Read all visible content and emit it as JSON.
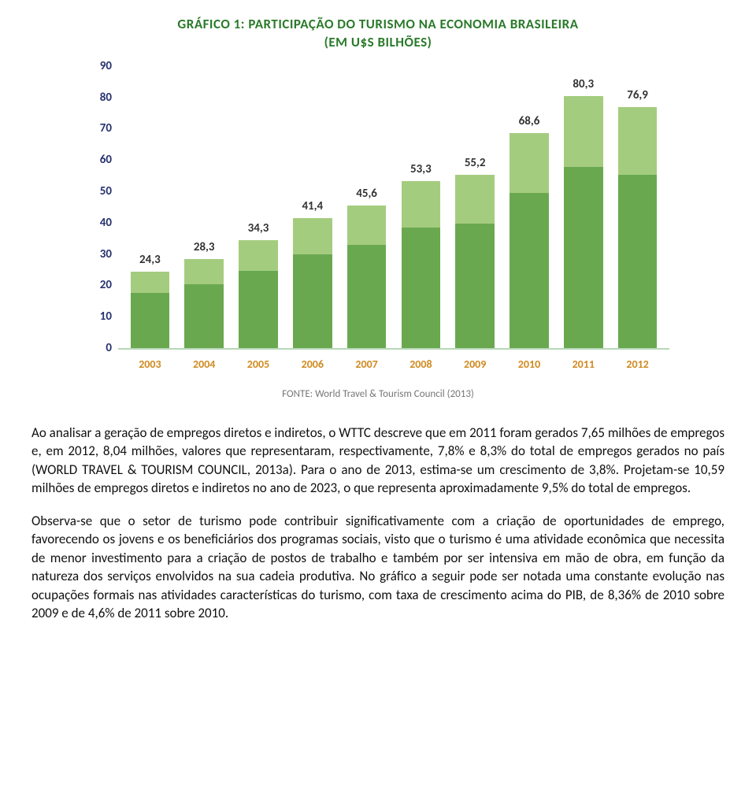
{
  "chart": {
    "type": "bar",
    "title_line1": "GRÁFICO 1: PARTICIPAÇÃO DO TURISMO NA ECONOMIA BRASILEIRA",
    "title_line2": "(EM U$S BILHÕES)",
    "title_color": "#2a7a2a",
    "title_fontsize": 17,
    "categories": [
      "2003",
      "2004",
      "2005",
      "2006",
      "2007",
      "2008",
      "2009",
      "2010",
      "2011",
      "2012"
    ],
    "values": [
      24.3,
      28.3,
      34.3,
      41.4,
      45.6,
      53.3,
      55.2,
      68.6,
      80.3,
      76.9
    ],
    "value_labels": [
      "24,3",
      "28,3",
      "34,3",
      "41,4",
      "45,6",
      "53,3",
      "55,2",
      "68,6",
      "80,3",
      "76,9"
    ],
    "lower_split_ratio": 0.72,
    "bar_top_color": "#a4cc7e",
    "bar_bottom_color": "#6aa84f",
    "bar_width_pct": 72,
    "ylim": [
      0,
      90
    ],
    "ytick_step": 10,
    "yticks": [
      0,
      10,
      20,
      30,
      40,
      50,
      60,
      70,
      80,
      90
    ],
    "ytick_color": "#27326f",
    "ytick_fontsize": 15,
    "xlabel_color": "#d08a1f",
    "xlabel_fontsize": 14,
    "value_label_color": "#333333",
    "value_label_fontsize": 15,
    "axis_line_color": "#b8d8b8",
    "background_color": "#ffffff",
    "source_label": "FONTE: World Travel & Tourism Council (2013)",
    "source_color": "#777777",
    "source_fontsize": 13
  },
  "paragraphs": {
    "p1": "Ao analisar a geração de empregos diretos e indiretos, o WTTC descreve que em 2011 foram gerados 7,65 milhões de empregos e, em 2012, 8,04 milhões, valores que representaram, respectivamente, 7,8% e 8,3% do total de empregos gerados no país (WORLD TRAVEL & TOURISM COUNCIL, 2013a). Para o ano de 2013, estima-se um crescimento de 3,8%. Projetam-se 10,59 milhões de empregos diretos e indiretos no ano de 2023, o que representa aproximadamente 9,5% do total de empregos.",
    "p2": "Observa-se que o setor de turismo pode contribuir significativamente com a criação de oportunidades de emprego, favorecendo os jovens e os beneficiários dos programas sociais, visto que o turismo é uma atividade econômica que necessita de menor investimento para a criação de postos de trabalho e também por ser intensiva em mão de obra, em função da natureza dos serviços envolvidos na sua cadeia produtiva. No gráfico a seguir pode ser notada uma constante evolução nas ocupações formais nas atividades características do turismo, com taxa de crescimento acima do PIB, de 8,36% de 2010 sobre 2009 e de 4,6% de 2011 sobre 2010."
  }
}
